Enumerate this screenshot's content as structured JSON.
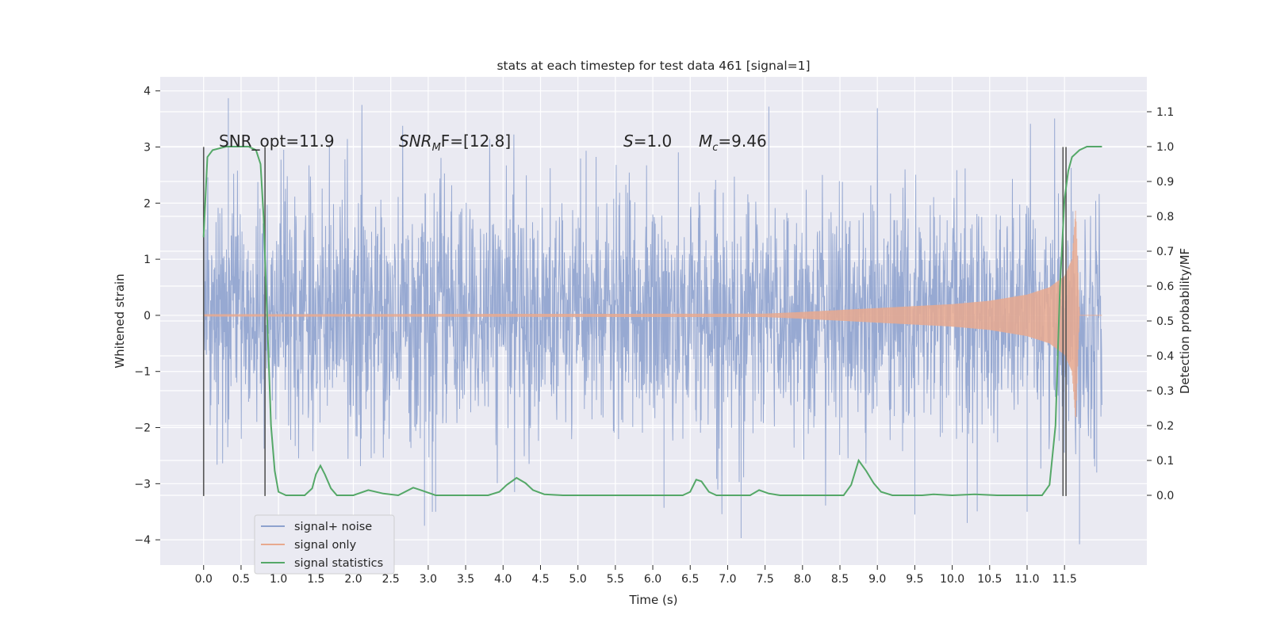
{
  "chart_data": {
    "type": "line",
    "title": "stats at each timestep for test data 461 [signal=1]",
    "xlabel": "Time (s)",
    "ylabel_left": "Whitened strain",
    "ylabel_right": "Detection probability/MF",
    "xlim": [
      -0.58,
      12.6
    ],
    "ylim_left": [
      -4.45,
      4.25
    ],
    "ylim_right": [
      -0.2,
      1.2
    ],
    "x_ticks": [
      "0.0",
      "0.5",
      "1.0",
      "1.5",
      "2.0",
      "2.5",
      "3.0",
      "3.5",
      "4.0",
      "4.5",
      "5.0",
      "5.5",
      "6.0",
      "6.5",
      "7.0",
      "7.5",
      "8.0",
      "8.5",
      "9.0",
      "9.5",
      "10.0",
      "10.5",
      "11.0",
      "11.5"
    ],
    "y_ticks_left": [
      "4",
      "3",
      "2",
      "1",
      "0",
      "−1",
      "−2",
      "−3",
      "−4"
    ],
    "y_ticks_right": [
      "1.1",
      "1.0",
      "0.9",
      "0.8",
      "0.7",
      "0.6",
      "0.5",
      "0.4",
      "0.3",
      "0.2",
      "0.1",
      "0.0"
    ],
    "grid": true,
    "legend_position": "lower-left",
    "annotations": {
      "snr_opt": "SNR_opt=11.9",
      "snr_mf_sym": "SNR",
      "snr_mf_sub": "M",
      "snr_mf_rest": "F=[12.8]",
      "s_sym": "S",
      "s_rest": "=1.0",
      "mc_sym": "M",
      "mc_sub": "c",
      "mc_rest": "=9.46"
    },
    "vlines_x": [
      0.0,
      0.82,
      11.48,
      11.52
    ],
    "vline_range_left": [
      -3.22,
      3.0
    ],
    "series": [
      {
        "name": "signal+ noise",
        "color": "#8ea2ce",
        "axis": "left",
        "style": "noise",
        "x_range": [
          0.0,
          12.0
        ],
        "sigma": 1.05,
        "spikes": [
          [
            0.33,
            3.87
          ],
          [
            1.07,
            2.95
          ],
          [
            2.95,
            -3.75
          ],
          [
            3.1,
            -3.5
          ],
          [
            6.15,
            -3.43
          ],
          [
            7.18,
            -3.97
          ],
          [
            7.55,
            3.72
          ],
          [
            9.5,
            -3.55
          ],
          [
            10.2,
            -3.7
          ],
          [
            11.0,
            -3.5
          ],
          [
            11.7,
            -4.08
          ],
          [
            11.93,
            -2.8
          ]
        ]
      },
      {
        "name": "signal only",
        "color": "#e8a98f",
        "axis": "left",
        "style": "chirp",
        "x_range": [
          0.0,
          12.0
        ],
        "envelope": [
          [
            0.0,
            0.02
          ],
          [
            7.5,
            0.03
          ],
          [
            8.0,
            0.06
          ],
          [
            9.0,
            0.13
          ],
          [
            10.0,
            0.2
          ],
          [
            10.5,
            0.26
          ],
          [
            11.0,
            0.37
          ],
          [
            11.3,
            0.5
          ],
          [
            11.5,
            0.7
          ],
          [
            11.6,
            1.0
          ],
          [
            11.65,
            1.9
          ],
          [
            11.7,
            0.0
          ],
          [
            12.0,
            0.0
          ]
        ]
      },
      {
        "name": "signal statistics",
        "color": "#55a868",
        "axis": "right",
        "style": "line",
        "points": [
          [
            0.0,
            0.74
          ],
          [
            0.05,
            0.97
          ],
          [
            0.12,
            0.99
          ],
          [
            0.3,
            1.0
          ],
          [
            0.6,
            1.0
          ],
          [
            0.7,
            0.99
          ],
          [
            0.76,
            0.95
          ],
          [
            0.8,
            0.8
          ],
          [
            0.85,
            0.5
          ],
          [
            0.9,
            0.2
          ],
          [
            0.95,
            0.07
          ],
          [
            1.0,
            0.01
          ],
          [
            1.1,
            0.0
          ],
          [
            1.35,
            0.0
          ],
          [
            1.45,
            0.02
          ],
          [
            1.5,
            0.06
          ],
          [
            1.56,
            0.085
          ],
          [
            1.62,
            0.06
          ],
          [
            1.7,
            0.02
          ],
          [
            1.78,
            0.0
          ],
          [
            2.0,
            0.0
          ],
          [
            2.2,
            0.015
          ],
          [
            2.4,
            0.005
          ],
          [
            2.6,
            0.0
          ],
          [
            2.8,
            0.022
          ],
          [
            2.9,
            0.015
          ],
          [
            3.1,
            0.0
          ],
          [
            3.8,
            0.0
          ],
          [
            3.95,
            0.01
          ],
          [
            4.05,
            0.03
          ],
          [
            4.18,
            0.05
          ],
          [
            4.3,
            0.035
          ],
          [
            4.4,
            0.015
          ],
          [
            4.55,
            0.003
          ],
          [
            4.8,
            0.0
          ],
          [
            6.4,
            0.0
          ],
          [
            6.5,
            0.01
          ],
          [
            6.58,
            0.045
          ],
          [
            6.65,
            0.04
          ],
          [
            6.75,
            0.01
          ],
          [
            6.85,
            0.0
          ],
          [
            7.3,
            0.0
          ],
          [
            7.42,
            0.015
          ],
          [
            7.55,
            0.005
          ],
          [
            7.7,
            0.0
          ],
          [
            8.55,
            0.0
          ],
          [
            8.65,
            0.03
          ],
          [
            8.75,
            0.1
          ],
          [
            8.85,
            0.07
          ],
          [
            8.95,
            0.035
          ],
          [
            9.05,
            0.01
          ],
          [
            9.2,
            0.0
          ],
          [
            9.6,
            0.0
          ],
          [
            9.75,
            0.003
          ],
          [
            10.0,
            0.0
          ],
          [
            10.3,
            0.003
          ],
          [
            10.6,
            0.0
          ],
          [
            11.2,
            0.0
          ],
          [
            11.3,
            0.03
          ],
          [
            11.38,
            0.2
          ],
          [
            11.44,
            0.6
          ],
          [
            11.5,
            0.85
          ],
          [
            11.55,
            0.93
          ],
          [
            11.6,
            0.97
          ],
          [
            11.7,
            0.99
          ],
          [
            11.8,
            1.0
          ],
          [
            12.0,
            1.0
          ]
        ]
      }
    ]
  }
}
